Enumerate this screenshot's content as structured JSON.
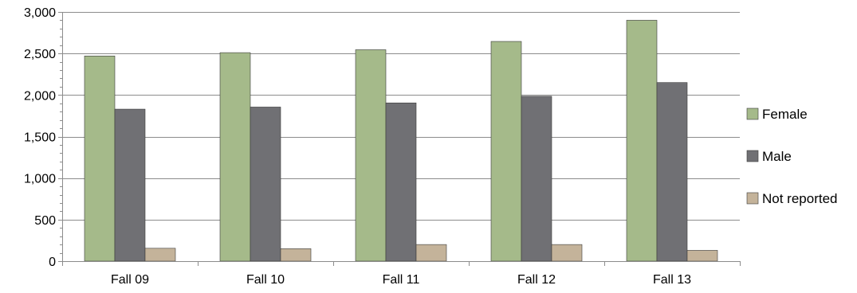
{
  "chart_data": {
    "type": "bar",
    "categories": [
      "Fall 09",
      "Fall 10",
      "Fall 11",
      "Fall 12",
      "Fall 13"
    ],
    "series": [
      {
        "name": "Female",
        "color": "#a5ba8a",
        "values": [
          2470,
          2510,
          2545,
          2645,
          2900
        ]
      },
      {
        "name": "Male",
        "color": "#707074",
        "values": [
          1830,
          1855,
          1905,
          1985,
          2150
        ]
      },
      {
        "name": "Not reported",
        "color": "#c4b39a",
        "values": [
          155,
          150,
          200,
          200,
          130
        ]
      }
    ],
    "ylim": [
      0,
      3000
    ],
    "yticks": [
      0,
      500,
      1000,
      1500,
      2000,
      2500,
      3000
    ],
    "ytick_labels": [
      "0",
      "500",
      "1,000",
      "1,500",
      "2,000",
      "2,500",
      "3,000"
    ],
    "grid": true,
    "legend": "right",
    "title": "",
    "xlabel": "",
    "ylabel": ""
  }
}
